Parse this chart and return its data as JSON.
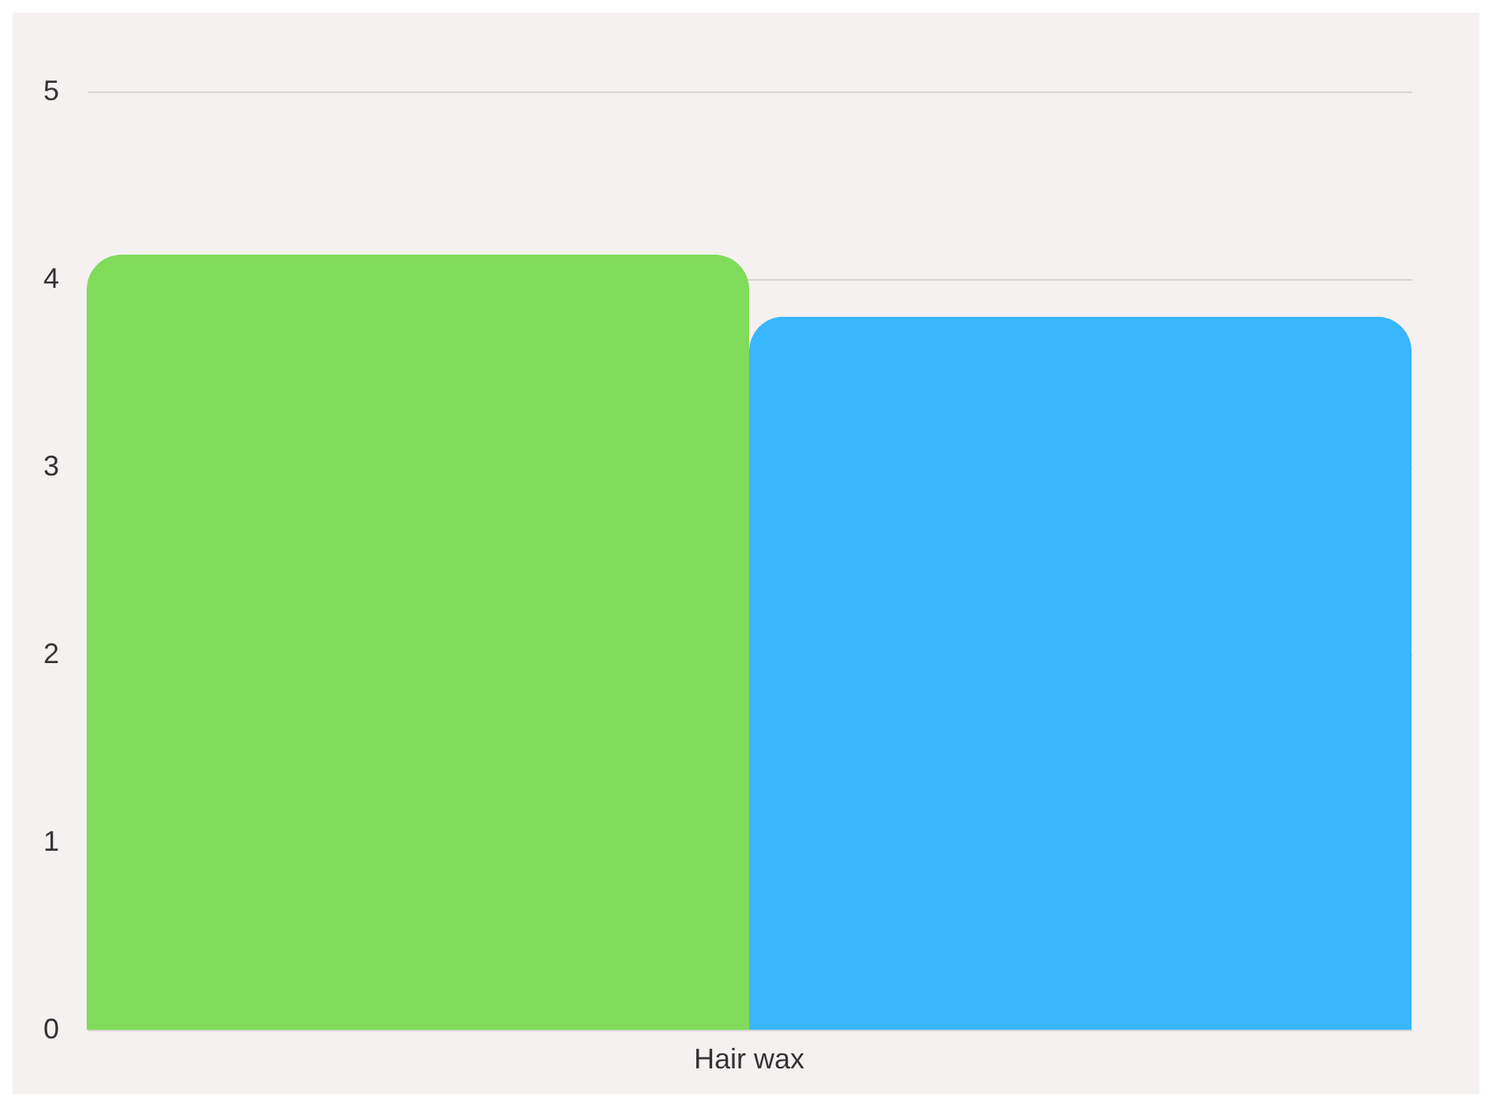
{
  "chart_data": {
    "type": "bar",
    "categories": [
      "Hair wax"
    ],
    "series": [
      {
        "color": "#80db5a",
        "values": [
          4.13
        ]
      },
      {
        "color": "#38b6ff",
        "values": [
          3.8
        ]
      }
    ],
    "ylim": [
      0,
      5
    ],
    "yticks": [
      0,
      1,
      2,
      3,
      4,
      5
    ],
    "grid": "y",
    "legend": false
  }
}
